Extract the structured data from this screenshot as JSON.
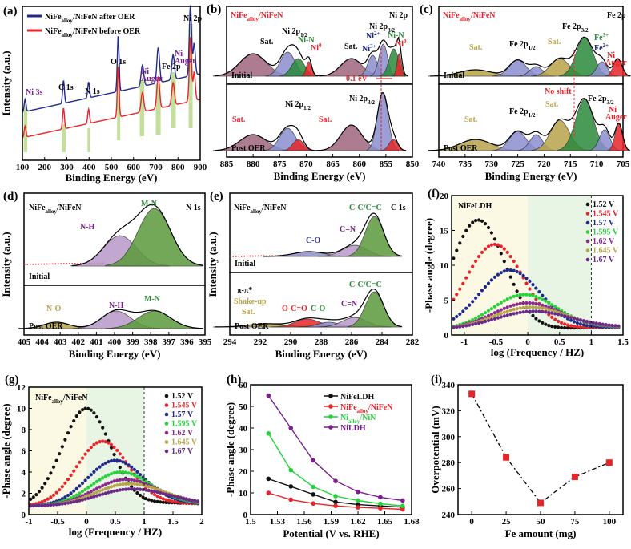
{
  "chart_data": [
    {
      "panel": "(a)",
      "type": "line",
      "xlabel": "Binding Energy (eV)",
      "ylabel": "Intensity (a.u.)",
      "xlim": [
        100,
        900
      ],
      "xticks": [
        100,
        200,
        300,
        400,
        500,
        600,
        700,
        800,
        900
      ],
      "legend": [
        "NiFe_alloy/NiFeN after OER",
        "NiFe_alloy/NiFeN before OER"
      ],
      "legend_parts": [
        [
          "NiFe",
          "alloy",
          "/NiFeN after OER"
        ],
        [
          "NiFe",
          "alloy",
          "/NiFeN before OER"
        ]
      ],
      "series_colors": [
        "#1f2a8c",
        "#e8242a"
      ],
      "peaks": [
        {
          "label": "Ni 3s",
          "x": 112
        },
        {
          "label": "C 1s",
          "x": 285
        },
        {
          "label": "N 1s",
          "x": 398
        },
        {
          "label": "O 1s",
          "x": 531
        },
        {
          "label": "Ni Auger",
          "x": 640
        },
        {
          "label": "Fe 2p",
          "x": 711
        },
        {
          "label": "Ni Auger",
          "x": 778
        },
        {
          "label": "Ni 2p",
          "x": 856
        }
      ],
      "peak_texts": [
        "Ni 3s",
        "C 1s",
        "N 1s",
        "O 1s",
        "Ni",
        "Auger",
        "Fe 2p",
        "Ni",
        "Auger",
        "Ni 2p"
      ]
    },
    {
      "panel": "(b)",
      "type": "area",
      "xlabel": "Binding Energy (eV)",
      "ylabel": "",
      "xlim": [
        885,
        850
      ],
      "xticks": [
        885,
        880,
        875,
        870,
        865,
        860,
        855,
        850
      ],
      "title_parts": [
        "NiFe",
        "alloy",
        "/NiFeN"
      ],
      "corner": "Ni 2p",
      "subpanels": [
        "Initial",
        "Post OER"
      ],
      "labels_top": [
        "Sat.",
        "Ni 2p",
        "1/2",
        "Ni-N",
        "Ni",
        "0",
        "Sat.",
        "Ni",
        "3+",
        "Ni 2p",
        "3/2",
        "Ni",
        "2+",
        "Ni-N",
        "Ni",
        "0"
      ],
      "shift": "0.1 eV",
      "labels_bottom": [
        "Sat.",
        "Ni 2p",
        "1/2",
        "Sat.",
        "Ni 2p",
        "3/2"
      ]
    },
    {
      "panel": "(c)",
      "type": "area",
      "xlabel": "Binding Energy (eV)",
      "ylabel": "",
      "xlim": [
        740,
        705
      ],
      "xticks": [
        740,
        735,
        730,
        725,
        720,
        715,
        710,
        705
      ],
      "title_parts": [
        "NiFe",
        "alloy",
        "/NiFeN"
      ],
      "corner": "Fe 2p",
      "subpanels": [
        "Initial",
        "Post OER"
      ],
      "labels_top": [
        "Sat.",
        "Fe 2p",
        "1/2",
        "Sat.",
        "Fe 2p",
        "3/2",
        "Fe",
        "3+",
        "Fe",
        "2+",
        "Ni",
        "Auger"
      ],
      "labels_bottom": [
        "No shift",
        "Sat.",
        "Fe 2p",
        "1/2",
        "Sat.",
        "Fe 2p",
        "3/2",
        "Ni",
        "Auger"
      ]
    },
    {
      "panel": "(d)",
      "type": "area",
      "xlabel": "Binding Energy (eV)",
      "ylabel": "Intensity (a.u.)",
      "xlim": [
        405,
        395
      ],
      "xticks": [
        405,
        404,
        403,
        402,
        401,
        400,
        399,
        398,
        397,
        396,
        395
      ],
      "title_parts": [
        "NiFe",
        "alloy",
        "/NiFeN"
      ],
      "corner": "N 1s",
      "subpanels": [
        "Initial",
        "Post OER"
      ],
      "labels_top": [
        "M-N",
        "N-H"
      ],
      "labels_bottom": [
        "N-O",
        "N-H",
        "M-N"
      ]
    },
    {
      "panel": "(e)",
      "type": "area",
      "xlabel": "Binding Energy (eV)",
      "ylabel": "Intensity (a.u.)",
      "xlim": [
        294,
        282
      ],
      "xticks": [
        294,
        292,
        290,
        288,
        286,
        284,
        282
      ],
      "title_parts": [
        "NiFe",
        "alloy",
        "/NiFeN"
      ],
      "corner": "C 1s",
      "subpanels": [
        "Initial",
        "Post OER"
      ],
      "labels_top": [
        "C-C/C=C",
        "C=N",
        "C-O"
      ],
      "labels_bottom": [
        "C-C/C=C",
        "π-π*",
        "Shake-up",
        "Sat.",
        "O-C=O",
        "C-O",
        "C=N"
      ]
    },
    {
      "panel": "(f)",
      "type": "scatter",
      "title": "NiFeLDH",
      "xlabel": "log (Frequency / HZ)",
      "ylabel": "-Phase angle (degree)",
      "xlim": [
        -1.2,
        1.5
      ],
      "ylim": [
        0,
        20
      ],
      "xticks": [
        -1.0,
        -0.5,
        0.0,
        0.5,
        1.0,
        1.5
      ],
      "yticks": [
        0,
        5,
        10,
        15,
        20
      ],
      "series": [
        {
          "name": "1.52 V",
          "color": "#111111",
          "peak_x": -0.78,
          "peak_y": 16.5
        },
        {
          "name": "1.545 V",
          "color": "#e8242a",
          "peak_x": -0.52,
          "peak_y": 13.0
        },
        {
          "name": "1.57 V",
          "color": "#1f2a8c",
          "peak_x": -0.28,
          "peak_y": 9.3
        },
        {
          "name": "1.595 V",
          "color": "#22d43a",
          "peak_x": -0.05,
          "peak_y": 5.8
        },
        {
          "name": "1.62 V",
          "color": "#8b2a8f",
          "peak_x": 0.0,
          "peak_y": 4.6
        },
        {
          "name": "1.645 V",
          "color": "#b8a44a",
          "peak_x": 0.05,
          "peak_y": 4.0
        },
        {
          "name": "1.67 V",
          "color": "#6a2a8a",
          "peak_x": 0.1,
          "peak_y": 3.4
        }
      ]
    },
    {
      "panel": "(g)",
      "type": "scatter",
      "title_parts": [
        "NiFe",
        "alloy",
        "/NiFeN"
      ],
      "xlabel": "log (Frequency / HZ)",
      "ylabel": "-Phase angle (degree)",
      "xlim": [
        -1.0,
        2.0
      ],
      "ylim": [
        0,
        12
      ],
      "xticks": [
        -1.0,
        -0.5,
        0.0,
        0.5,
        1.0,
        1.5,
        2.0
      ],
      "yticks": [
        0,
        2,
        4,
        6,
        8,
        10,
        12
      ],
      "series": [
        {
          "name": "1.52 V",
          "color": "#111111",
          "peak_x": 0.0,
          "peak_y": 10.0
        },
        {
          "name": "1.545 V",
          "color": "#e8242a",
          "peak_x": 0.28,
          "peak_y": 6.9
        },
        {
          "name": "1.57 V",
          "color": "#1f2a8c",
          "peak_x": 0.5,
          "peak_y": 5.1
        },
        {
          "name": "1.595 V",
          "color": "#22d43a",
          "peak_x": 0.6,
          "peak_y": 4.0
        },
        {
          "name": "1.62 V",
          "color": "#8b2a8f",
          "peak_x": 0.68,
          "peak_y": 3.3
        },
        {
          "name": "1.645 V",
          "color": "#b8a44a",
          "peak_x": 0.75,
          "peak_y": 2.9
        },
        {
          "name": "1.67 V",
          "color": "#6a2a8a",
          "peak_x": 0.8,
          "peak_y": 2.4
        }
      ]
    },
    {
      "panel": "(h)",
      "type": "line",
      "xlabel": "Potential (V vs. RHE)",
      "ylabel": "-Phase angle (degree)",
      "xlim": [
        1.5,
        1.68
      ],
      "ylim": [
        0,
        60
      ],
      "xticks": [
        1.5,
        1.53,
        1.56,
        1.59,
        1.62,
        1.65,
        1.68
      ],
      "yticks": [
        0,
        10,
        20,
        30,
        40,
        50,
        60
      ],
      "x": [
        1.52,
        1.545,
        1.57,
        1.595,
        1.62,
        1.645,
        1.67
      ],
      "series": [
        {
          "name": "NiFeLDH",
          "name_parts": [
            "NiFeLDH",
            "",
            ""
          ],
          "color": "#111111",
          "values": [
            16.5,
            13,
            9.3,
            5.8,
            4.6,
            4.0,
            3.4
          ]
        },
        {
          "name": "NiFe_alloy/NiFeN",
          "name_parts": [
            "NiFe",
            "alloy",
            "/NiFeN"
          ],
          "color": "#e8242a",
          "values": [
            10,
            6.9,
            5.1,
            4.0,
            3.3,
            2.9,
            2.4
          ]
        },
        {
          "name": "Ni_alloy/NiN",
          "name_parts": [
            "Ni",
            "alloy",
            "/NiN"
          ],
          "color": "#22d43a",
          "values": [
            37.5,
            20.5,
            12.8,
            8.5,
            6.5,
            5.0,
            4.0
          ]
        },
        {
          "name": "NiLDH",
          "name_parts": [
            "NiLDH",
            "",
            ""
          ],
          "color": "#7a1f8c",
          "values": [
            55,
            40,
            25,
            15.5,
            10.5,
            8.0,
            6.5
          ]
        }
      ]
    },
    {
      "panel": "(i)",
      "type": "line",
      "xlabel": "Fe amount (mg)",
      "ylabel": "Overpotential (mV)",
      "xlim": [
        -10,
        110
      ],
      "ylim": [
        240,
        340
      ],
      "xticks": [
        0,
        25,
        50,
        75,
        100
      ],
      "yticks": [
        240,
        260,
        280,
        300,
        320,
        340
      ],
      "x": [
        0,
        25,
        50,
        75,
        100
      ],
      "values": [
        333,
        284,
        249,
        269,
        280
      ],
      "color": "#e8242a"
    }
  ]
}
